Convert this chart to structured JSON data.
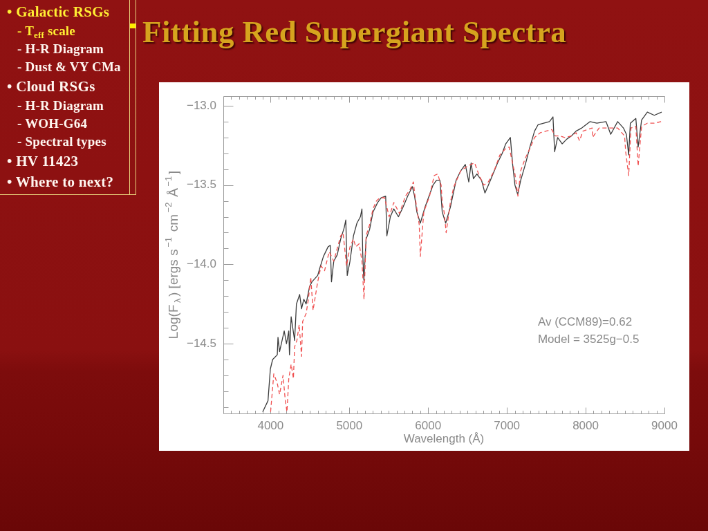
{
  "chart_data": [
    {
      "type": "other",
      "title": "• Galactic RSGs",
      "annotations": [
        "- T$_{eff}$ scale",
        "- H-R Diagram",
        "- Dust & VY CMa"
      ]
    },
    {
      "type": "other",
      "title": "• Cloud RSGs",
      "annotations": [
        "- H-R Diagram",
        "- WOH-G64",
        "- Spectral types"
      ]
    },
    {
      "type": "other",
      "title": "• HV 11423"
    },
    {
      "type": "other",
      "title": "• Where to next?"
    },
    {
      "type": "line",
      "title": "Fitting Red Supergiant Spectra",
      "xlabel": "Wavelength (Å)",
      "ylabel": "Log(F$_{λ}$) [ergs s$^{−1}$ cm$^{−2}$ Å$^{−1}$]",
      "annotations": [
        "Av (CCM89)=0.62",
        "Model = 3525g−0.5"
      ],
      "xlim": [
        3400,
        9000
      ],
      "ylim": [
        -14.94,
        -12.94
      ],
      "xticks": [
        {
          "value": 3500,
          "label": null
        },
        {
          "value": 3600,
          "label": null
        },
        {
          "value": 3700,
          "label": null
        },
        {
          "value": 3800,
          "label": null
        },
        {
          "value": 3900,
          "label": null
        },
        4000,
        {
          "value": 4100,
          "label": null
        },
        {
          "value": 4200,
          "label": null
        },
        {
          "value": 4300,
          "label": null
        },
        {
          "value": 4400,
          "label": null
        },
        {
          "value": 4500,
          "label": null
        },
        {
          "value": 4600,
          "label": null
        },
        {
          "value": 4700,
          "label": null
        },
        {
          "value": 4800,
          "label": null
        },
        {
          "value": 4900,
          "label": null
        },
        5000,
        {
          "value": 5100,
          "label": null
        },
        {
          "value": 5200,
          "label": null
        },
        {
          "value": 5300,
          "label": null
        },
        {
          "value": 5400,
          "label": null
        },
        {
          "value": 5500,
          "label": null
        },
        {
          "value": 5600,
          "label": null
        },
        {
          "value": 5700,
          "label": null
        },
        {
          "value": 5800,
          "label": null
        },
        {
          "value": 5900,
          "label": null
        },
        6000,
        {
          "value": 6100,
          "label": null
        },
        {
          "value": 6200,
          "label": null
        },
        {
          "value": 6300,
          "label": null
        },
        {
          "value": 6400,
          "label": null
        },
        {
          "value": 6500,
          "label": null
        },
        {
          "value": 6600,
          "label": null
        },
        {
          "value": 6700,
          "label": null
        },
        {
          "value": 6800,
          "label": null
        },
        {
          "value": 6900,
          "label": null
        },
        7000,
        {
          "value": 7100,
          "label": null
        },
        {
          "value": 7200,
          "label": null
        },
        {
          "value": 7300,
          "label": null
        },
        {
          "value": 7400,
          "label": null
        },
        {
          "value": 7500,
          "label": null
        },
        {
          "value": 7600,
          "label": null
        },
        {
          "value": 7700,
          "label": null
        },
        {
          "value": 7800,
          "label": null
        },
        {
          "value": 7900,
          "label": null
        },
        8000,
        {
          "value": 8100,
          "label": null
        },
        {
          "value": 8200,
          "label": null
        },
        {
          "value": 8300,
          "label": null
        },
        {
          "value": 8400,
          "label": null
        },
        {
          "value": 8500,
          "label": null
        },
        {
          "value": 8600,
          "label": null
        },
        {
          "value": 8700,
          "label": null
        },
        {
          "value": 8800,
          "label": null
        },
        {
          "value": 8900,
          "label": null
        },
        9000
      ],
      "yticks": [
        {
          "value": -14.9,
          "label": null
        },
        {
          "value": -14.8,
          "label": null
        },
        {
          "value": -14.7,
          "label": null
        },
        {
          "value": -14.6,
          "label": null
        },
        {
          "value": -14.5,
          "label": "−14.5"
        },
        {
          "value": -14.4,
          "label": null
        },
        {
          "value": -14.3,
          "label": null
        },
        {
          "value": -14.2,
          "label": null
        },
        {
          "value": -14.1,
          "label": null
        },
        {
          "value": -14,
          "label": "−14.0"
        },
        {
          "value": -13.9,
          "label": null
        },
        {
          "value": -13.8,
          "label": null
        },
        {
          "value": -13.7,
          "label": null
        },
        {
          "value": -13.6,
          "label": null
        },
        {
          "value": -13.5,
          "label": "−13.5"
        },
        {
          "value": -13.4,
          "label": null
        },
        {
          "value": -13.3,
          "label": null
        },
        {
          "value": -13.2,
          "label": null
        },
        {
          "value": -13.1,
          "label": null
        },
        {
          "value": -13,
          "label": "−13.0"
        }
      ],
      "grid": false,
      "series": [
        {
          "color": "#3c3c3c",
          "line_style": "solid",
          "x": [
            3900,
            3967,
            3997,
            4026,
            4085,
            4094,
            4114,
            4173,
            4202,
            4231,
            4240,
            4261,
            4305,
            4328,
            4369,
            4393,
            4422,
            4451,
            4495,
            4525,
            4598,
            4627,
            4671,
            4729,
            4758,
            4773,
            4802,
            4846,
            4890,
            4934,
            4955,
            4973,
            5008,
            5052,
            5096,
            5140,
            5160,
            5169,
            5184,
            5213,
            5257,
            5300,
            5359,
            5403,
            5461,
            5476,
            5520,
            5564,
            5623,
            5681,
            5740,
            5799,
            5828,
            5857,
            5901,
            5960,
            6062,
            6106,
            6150,
            6179,
            6223,
            6282,
            6355,
            6414,
            6472,
            6516,
            6546,
            6575,
            6619,
            6678,
            6721,
            6765,
            6824,
            6882,
            6941,
            6985,
            7044,
            7073,
            7102,
            7137,
            7175,
            7234,
            7292,
            7351,
            7395,
            7468,
            7541,
            7585,
            7606,
            7644,
            7702,
            7761,
            7820,
            7878,
            7951,
            8054,
            8142,
            8259,
            8318,
            8406,
            8479,
            8517,
            8546,
            8567,
            8637,
            8666,
            8710,
            8783,
            8871,
            8965
          ],
          "values": [
            -14.93,
            -14.86,
            -14.66,
            -14.6,
            -14.57,
            -14.46,
            -14.55,
            -14.42,
            -14.5,
            -14.42,
            -14.57,
            -14.33,
            -14.48,
            -14.25,
            -14.19,
            -14.28,
            -14.22,
            -14.25,
            -14.14,
            -14.11,
            -14.07,
            -14.02,
            -13.95,
            -13.89,
            -13.88,
            -14.11,
            -13.98,
            -13.94,
            -13.84,
            -13.77,
            -13.72,
            -14.07,
            -13.98,
            -13.82,
            -13.74,
            -13.7,
            -13.65,
            -13.92,
            -14.1,
            -13.84,
            -13.78,
            -13.67,
            -13.61,
            -13.58,
            -13.57,
            -13.82,
            -13.7,
            -13.65,
            -13.7,
            -13.64,
            -13.57,
            -13.51,
            -13.57,
            -13.67,
            -13.74,
            -13.64,
            -13.5,
            -13.47,
            -13.47,
            -13.67,
            -13.74,
            -13.64,
            -13.47,
            -13.41,
            -13.37,
            -13.48,
            -13.36,
            -13.46,
            -13.43,
            -13.47,
            -13.55,
            -13.5,
            -13.43,
            -13.36,
            -13.3,
            -13.24,
            -13.2,
            -13.37,
            -13.5,
            -13.56,
            -13.47,
            -13.37,
            -13.26,
            -13.16,
            -13.12,
            -13.11,
            -13.1,
            -13.07,
            -13.29,
            -13.2,
            -13.24,
            -13.21,
            -13.19,
            -13.16,
            -13.14,
            -13.1,
            -13.11,
            -13.1,
            -13.18,
            -13.1,
            -13.14,
            -13.18,
            -13.31,
            -13.11,
            -13.08,
            -13.26,
            -13.09,
            -13.04,
            -13.06,
            -13.04
          ]
        },
        {
          "color": "#f05050",
          "line_style": "dashed",
          "x": [
            4000,
            4012,
            4041,
            4085,
            4114,
            4158,
            4187,
            4208,
            4231,
            4261,
            4290,
            4305,
            4334,
            4363,
            4393,
            4407,
            4451,
            4480,
            4510,
            4539,
            4598,
            4641,
            4685,
            4744,
            4802,
            4890,
            4920,
            4964,
            5008,
            5052,
            5081,
            5125,
            5160,
            5186,
            5213,
            5257,
            5300,
            5344,
            5388,
            5447,
            5505,
            5564,
            5637,
            5711,
            5769,
            5813,
            5828,
            5887,
            5901,
            5945,
            6018,
            6077,
            6121,
            6165,
            6179,
            6203,
            6229,
            6282,
            6326,
            6414,
            6502,
            6590,
            6648,
            6707,
            6765,
            6838,
            6911,
            6985,
            7029,
            7058,
            7102,
            7140,
            7175,
            7234,
            7292,
            7351,
            7424,
            7497,
            7570,
            7614,
            7673,
            7732,
            7820,
            7878,
            7922,
            7966,
            8083,
            8088,
            8171,
            8289,
            8406,
            8494,
            8508,
            8546,
            8575,
            8637,
            8666,
            8710,
            8783,
            8871,
            8957
          ],
          "values": [
            -14.93,
            -14.86,
            -14.69,
            -14.75,
            -14.82,
            -14.7,
            -14.86,
            -14.93,
            -14.72,
            -14.63,
            -14.72,
            -14.52,
            -14.48,
            -14.38,
            -14.58,
            -14.36,
            -14.31,
            -14.22,
            -14.08,
            -14.29,
            -14.11,
            -14.01,
            -14.04,
            -13.92,
            -13.98,
            -13.82,
            -13.8,
            -14.01,
            -13.89,
            -13.84,
            -13.89,
            -13.87,
            -13.98,
            -14.22,
            -13.82,
            -13.75,
            -13.65,
            -13.6,
            -13.58,
            -13.58,
            -13.7,
            -13.61,
            -13.68,
            -13.57,
            -13.53,
            -13.48,
            -13.55,
            -13.75,
            -13.95,
            -13.67,
            -13.57,
            -13.44,
            -13.43,
            -13.5,
            -13.61,
            -13.67,
            -13.8,
            -13.61,
            -13.51,
            -13.41,
            -13.38,
            -13.36,
            -13.44,
            -13.5,
            -13.48,
            -13.41,
            -13.31,
            -13.27,
            -13.26,
            -13.33,
            -13.43,
            -13.57,
            -13.41,
            -13.33,
            -13.27,
            -13.2,
            -13.17,
            -13.16,
            -13.15,
            -13.19,
            -13.19,
            -13.2,
            -13.19,
            -13.17,
            -13.22,
            -13.16,
            -13.14,
            -13.2,
            -13.14,
            -13.14,
            -13.14,
            -13.19,
            -13.29,
            -13.44,
            -13.14,
            -13.13,
            -13.38,
            -13.13,
            -13.11,
            -13.11,
            -13.1
          ]
        }
      ]
    }
  ]
}
